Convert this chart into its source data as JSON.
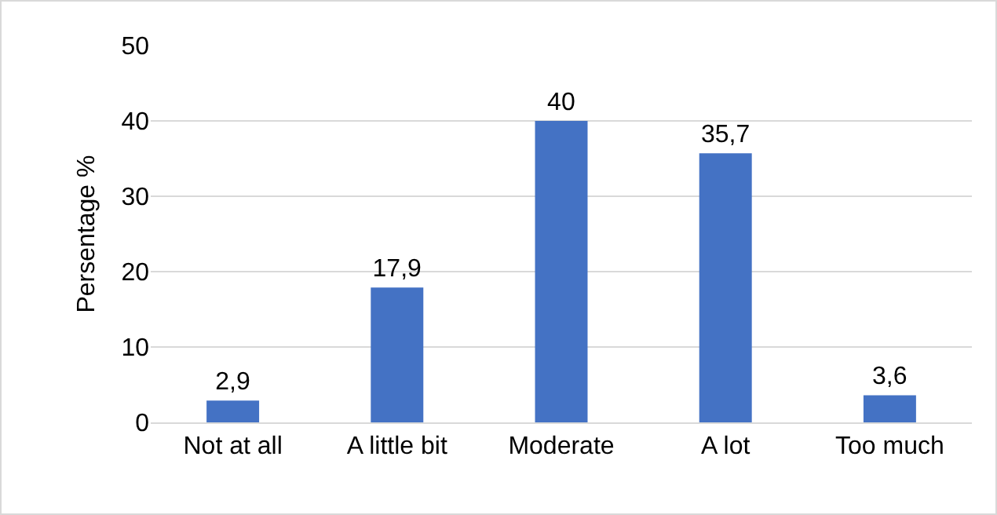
{
  "chart_data": {
    "type": "bar",
    "ylabel": "Persentage %",
    "categories": [
      "Not at all",
      "A little bit",
      "Moderate",
      "A lot",
      "Too much"
    ],
    "values": [
      2.9,
      17.9,
      40,
      35.7,
      3.6
    ],
    "value_labels": [
      "2,9",
      "17,9",
      "40",
      "35,7",
      "3,6"
    ],
    "color": "#4472c4",
    "ylim": [
      0,
      50
    ],
    "yticks": [
      0,
      10,
      20,
      30,
      40,
      50
    ],
    "grid": "y",
    "legend": false
  }
}
